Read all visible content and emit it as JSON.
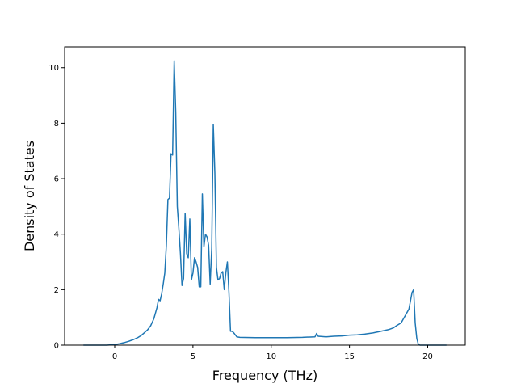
{
  "chart_data": {
    "type": "line",
    "title": "",
    "xlabel": "Frequency (THz)",
    "ylabel": "Density of States",
    "xlim": [
      -3.2,
      22.4
    ],
    "ylim": [
      0,
      10.75
    ],
    "xticks": [
      0,
      5,
      10,
      15,
      20
    ],
    "yticks": [
      0,
      2,
      4,
      6,
      8,
      10
    ],
    "grid": false,
    "legend": "none",
    "series": [
      {
        "color": "#1f77b4",
        "x": [
          -2.0,
          -1.5,
          -1.0,
          -0.5,
          0.0,
          0.3,
          0.6,
          0.9,
          1.2,
          1.5,
          1.7,
          1.9,
          2.1,
          2.3,
          2.5,
          2.6,
          2.7,
          2.8,
          2.9,
          3.0,
          3.1,
          3.2,
          3.3,
          3.4,
          3.5,
          3.6,
          3.7,
          3.8,
          3.9,
          4.0,
          4.1,
          4.2,
          4.3,
          4.4,
          4.5,
          4.6,
          4.7,
          4.8,
          4.9,
          5.0,
          5.1,
          5.2,
          5.3,
          5.4,
          5.5,
          5.6,
          5.7,
          5.8,
          5.9,
          6.0,
          6.1,
          6.2,
          6.3,
          6.4,
          6.5,
          6.6,
          6.7,
          6.8,
          6.9,
          7.0,
          7.1,
          7.2,
          7.3,
          7.4,
          7.5,
          7.6,
          7.8,
          8.0,
          9.0,
          10.0,
          11.0,
          12.0,
          12.8,
          12.9,
          13.0,
          13.5,
          14.0,
          14.5,
          15.0,
          15.5,
          16.0,
          16.5,
          17.0,
          17.5,
          17.8,
          18.0,
          18.3,
          18.6,
          18.8,
          19.0,
          19.1,
          19.2,
          19.3,
          19.4,
          19.5,
          20.0,
          21.2
        ],
        "y": [
          0.0,
          0.0,
          0.0,
          0.0,
          0.02,
          0.05,
          0.09,
          0.14,
          0.2,
          0.28,
          0.35,
          0.45,
          0.55,
          0.7,
          0.95,
          1.15,
          1.35,
          1.65,
          1.6,
          1.85,
          2.2,
          2.6,
          3.6,
          5.25,
          5.3,
          6.9,
          6.85,
          10.25,
          8.4,
          5.0,
          4.2,
          3.3,
          2.15,
          2.4,
          4.75,
          3.3,
          3.15,
          4.55,
          2.35,
          2.6,
          3.15,
          3.0,
          2.8,
          2.1,
          2.1,
          5.45,
          3.55,
          4.0,
          3.9,
          3.6,
          2.2,
          3.5,
          7.95,
          6.2,
          2.8,
          2.35,
          2.4,
          2.6,
          2.65,
          2.0,
          2.6,
          3.0,
          1.9,
          0.5,
          0.5,
          0.45,
          0.3,
          0.28,
          0.27,
          0.27,
          0.27,
          0.28,
          0.3,
          0.42,
          0.32,
          0.3,
          0.32,
          0.33,
          0.36,
          0.37,
          0.4,
          0.44,
          0.5,
          0.56,
          0.62,
          0.7,
          0.8,
          1.1,
          1.3,
          1.9,
          2.0,
          0.8,
          0.25,
          0.03,
          0.0,
          0.0,
          0.0
        ]
      }
    ]
  }
}
